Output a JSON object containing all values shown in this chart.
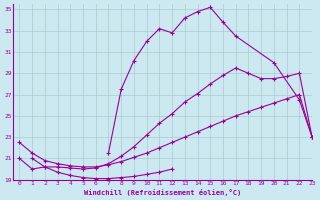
{
  "xlabel": "Windchill (Refroidissement éolien,°C)",
  "bg_color": "#cce8f0",
  "line_color": "#990099",
  "grid_color": "#aacccc",
  "xlim": [
    -0.5,
    23
  ],
  "ylim": [
    19,
    35.5
  ],
  "yticks": [
    19,
    21,
    23,
    25,
    27,
    29,
    31,
    33,
    35
  ],
  "xticks": [
    0,
    1,
    2,
    3,
    4,
    5,
    6,
    7,
    8,
    9,
    10,
    11,
    12,
    13,
    14,
    15,
    16,
    17,
    18,
    19,
    20,
    21,
    22,
    23
  ],
  "line_upper_x": [
    7,
    8,
    9,
    10,
    11,
    12,
    13,
    14,
    15,
    16,
    17,
    20,
    22,
    23
  ],
  "line_upper_y": [
    21.5,
    27.5,
    30.2,
    32.0,
    33.2,
    32.8,
    34.2,
    34.8,
    35.2,
    33.8,
    32.5,
    30.0,
    26.5,
    23.0
  ],
  "line_mid_x": [
    0,
    1,
    2,
    3,
    4,
    5,
    6,
    7,
    8,
    9,
    10,
    11,
    12,
    13,
    14,
    15,
    16,
    17,
    18,
    19,
    20,
    21,
    22,
    23
  ],
  "line_mid_y": [
    21.0,
    20.0,
    20.2,
    20.2,
    20.1,
    20.0,
    20.1,
    20.5,
    21.2,
    22.1,
    23.2,
    24.3,
    25.2,
    26.3,
    27.1,
    28.0,
    28.8,
    29.5,
    29.0,
    28.5,
    28.5,
    28.7,
    29.0,
    23.0
  ],
  "line_low_x": [
    0,
    1,
    2,
    3,
    4,
    5,
    6,
    7,
    8,
    9,
    10,
    11,
    12,
    13,
    14,
    15,
    16,
    17,
    18,
    19,
    20,
    21,
    22,
    23
  ],
  "line_low_y": [
    22.5,
    21.5,
    20.8,
    20.5,
    20.3,
    20.2,
    20.2,
    20.4,
    20.7,
    21.1,
    21.5,
    22.0,
    22.5,
    23.0,
    23.5,
    24.0,
    24.5,
    25.0,
    25.4,
    25.8,
    26.2,
    26.6,
    27.0,
    23.0
  ],
  "line_bot_x": [
    1,
    2,
    3,
    4,
    5,
    6,
    7,
    8,
    9,
    10,
    11,
    12
  ],
  "line_bot_y": [
    21.0,
    20.2,
    19.7,
    19.4,
    19.2,
    19.1,
    19.1,
    19.2,
    19.3,
    19.5,
    19.7,
    20.0
  ]
}
